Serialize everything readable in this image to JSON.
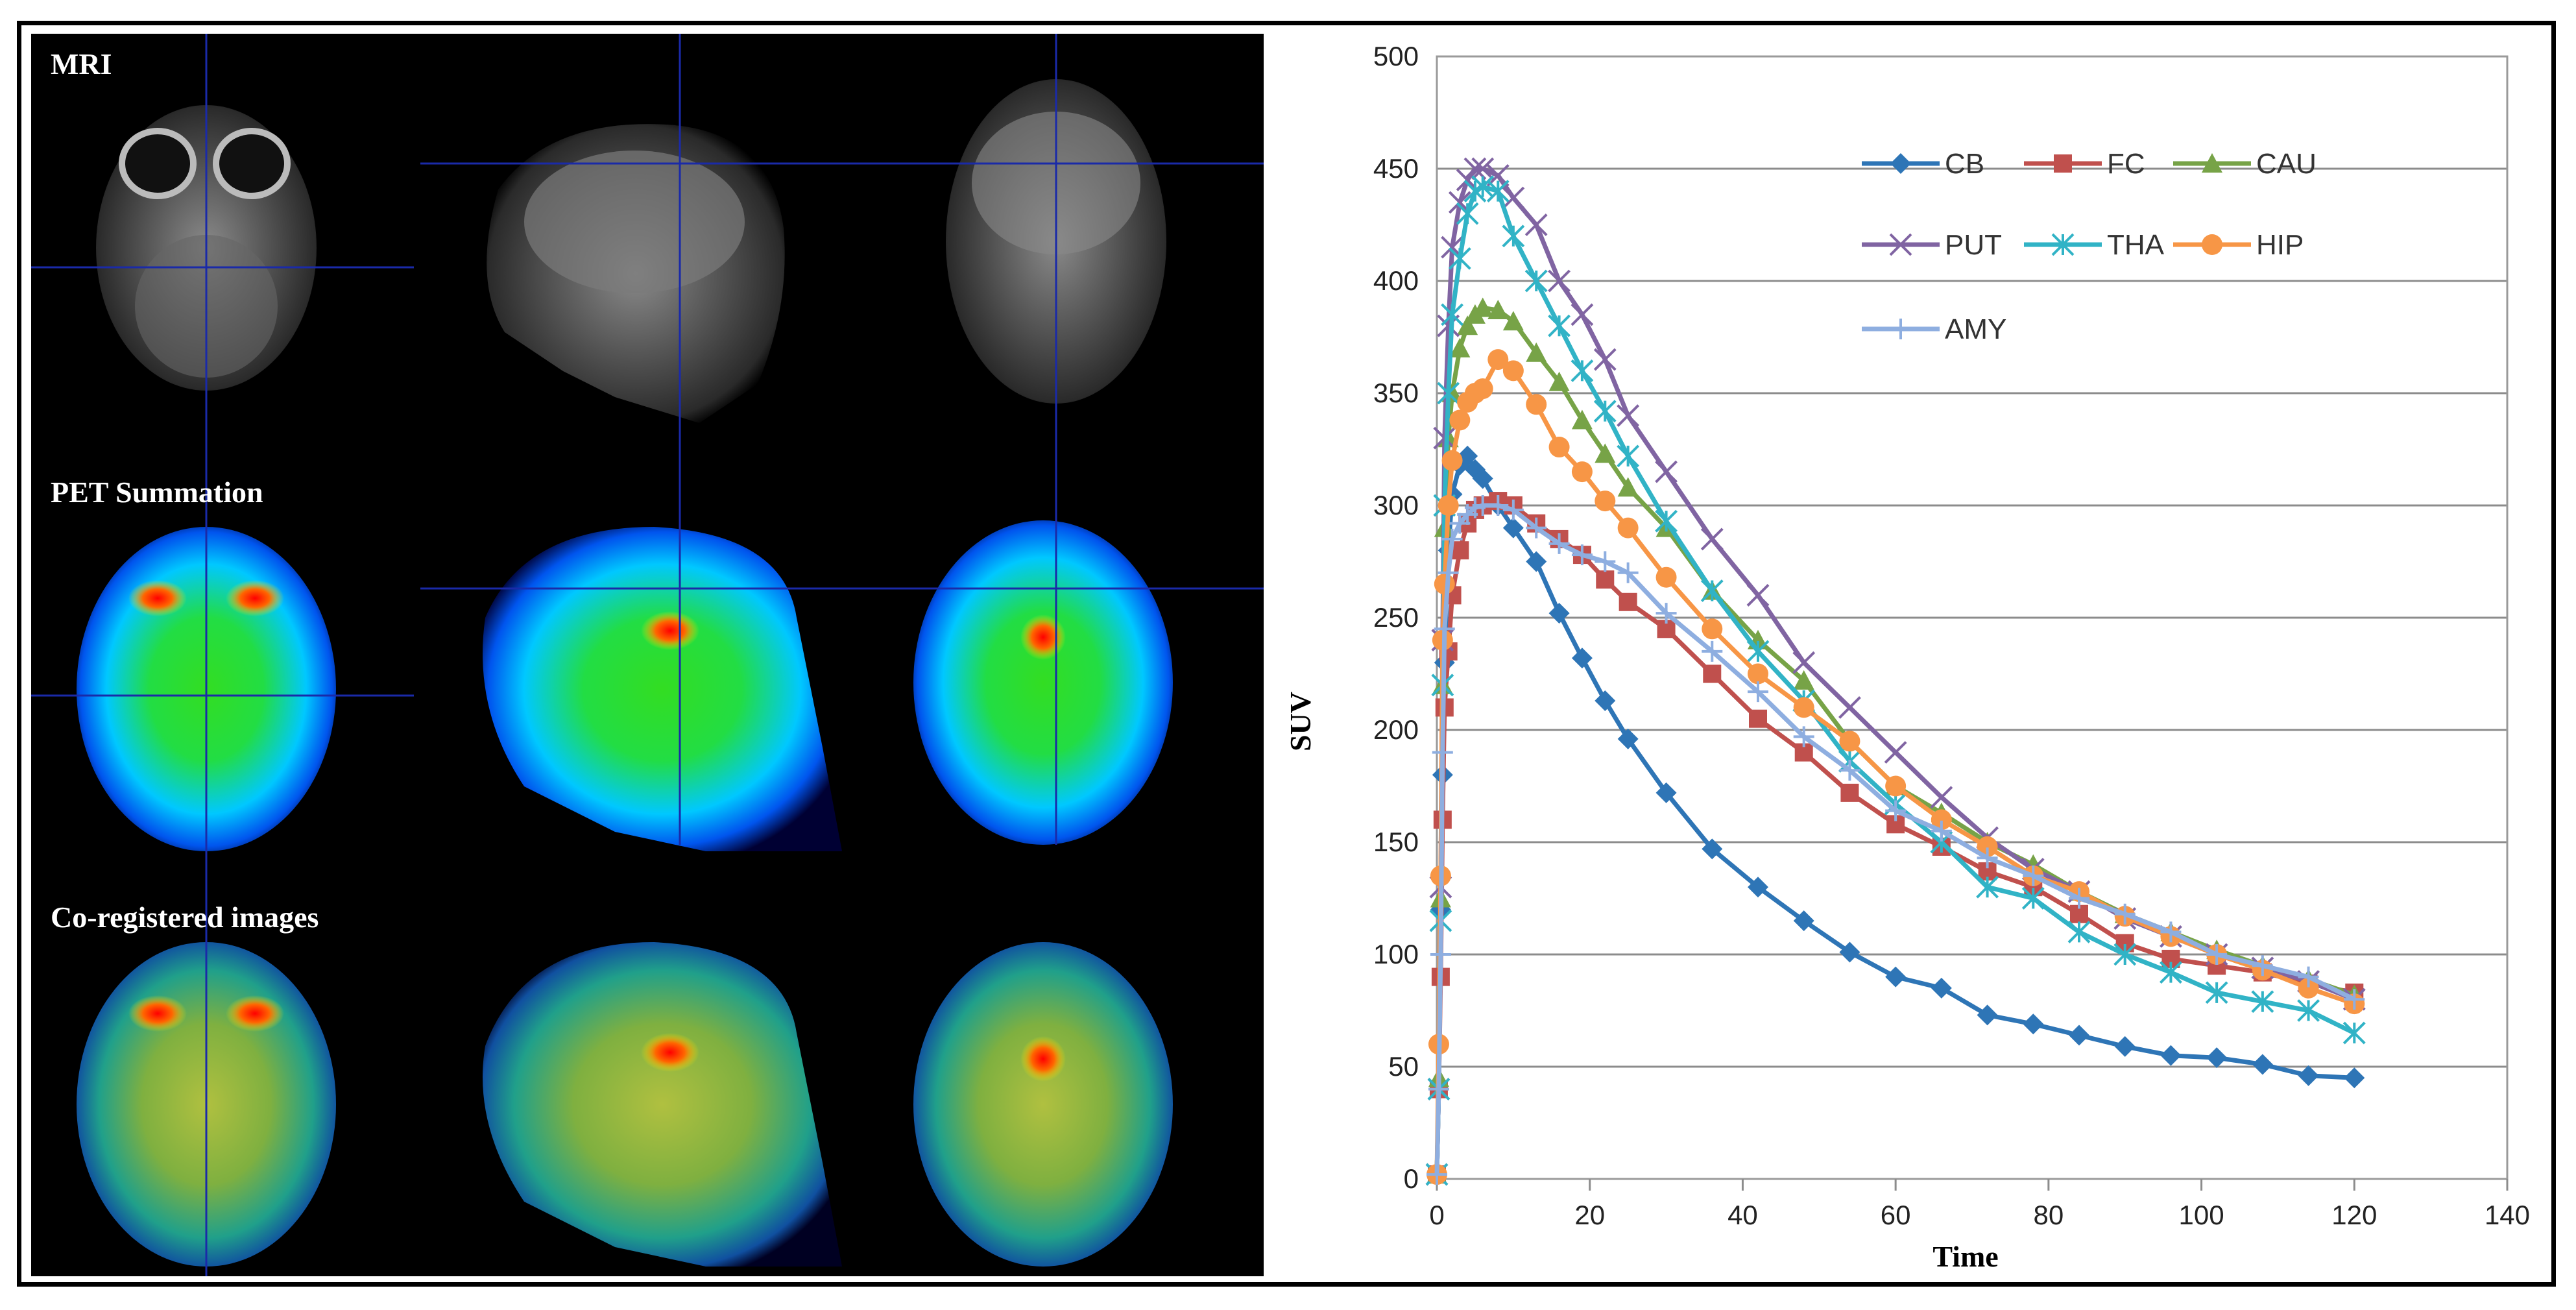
{
  "figure": {
    "panel_labels": [
      "MRI",
      "PET Summation",
      "Co-registered images"
    ]
  },
  "chart_data": {
    "type": "line",
    "title": "",
    "xlabel": "Time",
    "ylabel": "SUV",
    "xlim": [
      0,
      140
    ],
    "ylim": [
      0,
      500
    ],
    "xticks": [
      0,
      20,
      40,
      60,
      80,
      100,
      120,
      140
    ],
    "yticks": [
      0,
      50,
      100,
      150,
      200,
      250,
      300,
      350,
      400,
      450,
      500
    ],
    "grid": "horizontal",
    "legend_placement": "top-right",
    "x": [
      0,
      0.25,
      0.5,
      0.75,
      1,
      1.5,
      2,
      3,
      4,
      5,
      6,
      8,
      10,
      13,
      16,
      19,
      22,
      25,
      30,
      36,
      42,
      48,
      54,
      60,
      66,
      72,
      78,
      84,
      90,
      96,
      102,
      108,
      114,
      120
    ],
    "series": [
      {
        "name": "CB",
        "color": "#2e75b6",
        "marker": "diamond",
        "values": [
          2,
          40,
          120,
          180,
          230,
          280,
          305,
          318,
          322,
          316,
          312,
          300,
          290,
          275,
          252,
          232,
          213,
          196,
          172,
          147,
          130,
          115,
          101,
          90,
          85,
          73,
          69,
          64,
          59,
          55,
          54,
          51,
          46,
          45
        ]
      },
      {
        "name": "FC",
        "color": "#c0504d",
        "marker": "square",
        "values": [
          2,
          40,
          90,
          160,
          210,
          235,
          260,
          280,
          292,
          298,
          300,
          302,
          300,
          292,
          285,
          278,
          267,
          257,
          245,
          225,
          205,
          190,
          172,
          158,
          148,
          137,
          130,
          118,
          105,
          98,
          95,
          92,
          87,
          83
        ]
      },
      {
        "name": "CAU",
        "color": "#77a347",
        "marker": "triangle",
        "values": [
          2,
          45,
          125,
          220,
          290,
          330,
          350,
          370,
          380,
          385,
          388,
          387,
          382,
          368,
          355,
          338,
          323,
          308,
          290,
          262,
          240,
          222,
          195,
          175,
          163,
          150,
          140,
          128,
          118,
          110,
          102,
          95,
          89,
          82
        ]
      },
      {
        "name": "PUT",
        "color": "#8064a2",
        "marker": "x",
        "values": [
          2,
          40,
          130,
          240,
          330,
          380,
          415,
          435,
          445,
          450,
          450,
          447,
          437,
          425,
          400,
          385,
          365,
          340,
          315,
          285,
          260,
          230,
          210,
          190,
          170,
          152,
          138,
          128,
          116,
          108,
          100,
          94,
          88,
          80
        ]
      },
      {
        "name": "THA",
        "color": "#31b3c6",
        "marker": "star",
        "values": [
          2,
          40,
          115,
          220,
          300,
          350,
          385,
          410,
          430,
          440,
          442,
          440,
          420,
          400,
          380,
          360,
          342,
          322,
          293,
          262,
          235,
          213,
          186,
          167,
          150,
          130,
          125,
          110,
          100,
          92,
          83,
          79,
          75,
          65
        ]
      },
      {
        "name": "HIP",
        "color": "#f79646",
        "marker": "circle",
        "values": [
          2,
          60,
          135,
          240,
          265,
          300,
          320,
          338,
          346,
          350,
          352,
          365,
          360,
          345,
          326,
          315,
          302,
          290,
          268,
          245,
          225,
          210,
          195,
          175,
          160,
          148,
          135,
          128,
          117,
          108,
          100,
          93,
          85,
          78
        ]
      },
      {
        "name": "AMY",
        "color": "#8eaee0",
        "marker": "plus",
        "values": [
          2,
          40,
          100,
          190,
          245,
          270,
          285,
          292,
          296,
          299,
          300,
          300,
          298,
          290,
          283,
          278,
          275,
          270,
          252,
          235,
          217,
          197,
          182,
          164,
          155,
          143,
          135,
          125,
          118,
          110,
          100,
          95,
          90,
          80
        ]
      }
    ]
  }
}
